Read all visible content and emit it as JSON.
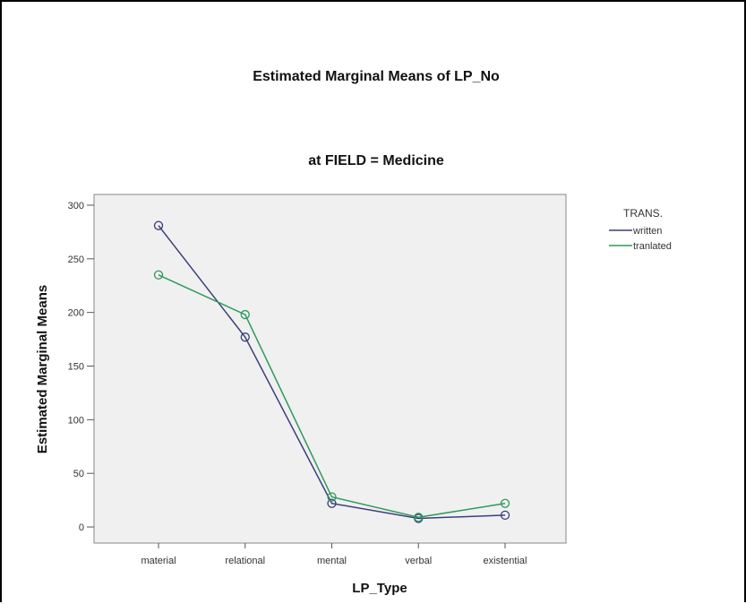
{
  "chart_data": {
    "type": "line",
    "title": "Estimated Marginal Means of LP_No",
    "subtitle": "at FIELD = Medicine",
    "xlabel": "LP_Type",
    "ylabel": "Estimated Marginal Means",
    "categories": [
      "material",
      "relational",
      "mental",
      "verbal",
      "existential"
    ],
    "ylim": [
      -15,
      310
    ],
    "yticks": [
      0,
      50,
      100,
      150,
      200,
      250,
      300
    ],
    "grid": false,
    "legend": {
      "title": "TRANS.",
      "placement": "right"
    },
    "series": [
      {
        "name": "written",
        "color": "#3b3f7c",
        "values": [
          281,
          177,
          22,
          8,
          11
        ]
      },
      {
        "name": "tranlated",
        "color": "#2e9a5c",
        "values": [
          235,
          198,
          28,
          9,
          22
        ]
      }
    ],
    "plot_background": "#f0f0f0"
  }
}
